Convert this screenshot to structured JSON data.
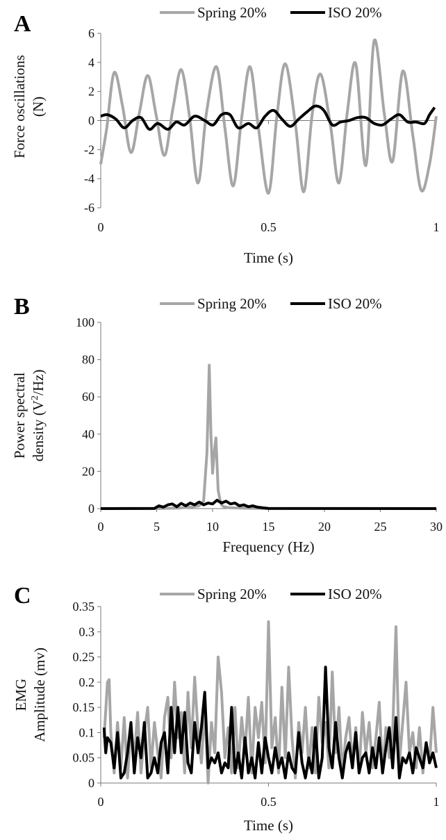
{
  "chart_data": [
    {
      "panel": "A",
      "type": "line",
      "xlabel": "Time (s)",
      "ylabel": "Force oscillations (N)",
      "xlim": [
        0,
        1
      ],
      "ylim": [
        -6,
        6
      ],
      "xticks": [
        "0",
        "0.5",
        "1"
      ],
      "xtick_values": [
        0,
        0.5,
        1
      ],
      "yticks": [
        "-6",
        "-4",
        "-2",
        "0",
        "2",
        "4",
        "6"
      ],
      "ytick_values": [
        -6,
        -4,
        -2,
        0,
        2,
        4,
        6
      ],
      "grid": false,
      "legend_position": "top-center",
      "series": [
        {
          "name": "Spring 20%",
          "color": "#a6a6a6",
          "x": [
            0,
            0.018,
            0.04,
            0.065,
            0.09,
            0.115,
            0.14,
            0.165,
            0.19,
            0.215,
            0.24,
            0.265,
            0.29,
            0.315,
            0.345,
            0.37,
            0.395,
            0.42,
            0.445,
            0.47,
            0.5,
            0.525,
            0.55,
            0.58,
            0.605,
            0.63,
            0.655,
            0.685,
            0.71,
            0.735,
            0.76,
            0.79,
            0.815,
            0.845,
            0.87,
            0.9,
            0.93,
            0.955,
            0.98,
            1.0
          ],
          "y": [
            -3.0,
            -0.5,
            3.3,
            1.0,
            -2.2,
            0.5,
            3.1,
            0.4,
            -2.4,
            0.8,
            3.5,
            0.2,
            -4.3,
            0.5,
            3.7,
            -0.5,
            -4.5,
            0.2,
            3.7,
            -0.5,
            -5.0,
            0.3,
            3.9,
            -0.2,
            -4.9,
            0.4,
            3.2,
            -0.4,
            -4.3,
            0.6,
            3.9,
            -3.1,
            5.5,
            0.5,
            -2.8,
            3.4,
            -1.0,
            -4.8,
            -3.0,
            0.3
          ]
        },
        {
          "name": "ISO 20%",
          "color": "#000000",
          "x": [
            0,
            0.02,
            0.045,
            0.07,
            0.095,
            0.12,
            0.145,
            0.17,
            0.2,
            0.225,
            0.25,
            0.28,
            0.31,
            0.335,
            0.36,
            0.385,
            0.41,
            0.44,
            0.465,
            0.49,
            0.515,
            0.54,
            0.565,
            0.59,
            0.615,
            0.64,
            0.665,
            0.69,
            0.715,
            0.74,
            0.765,
            0.79,
            0.815,
            0.84,
            0.865,
            0.89,
            0.915,
            0.94,
            0.965,
            0.98,
            0.995
          ],
          "y": [
            0.3,
            0.4,
            0.1,
            -0.5,
            0.0,
            0.2,
            -0.6,
            -0.2,
            -0.6,
            -0.1,
            -0.3,
            0.3,
            0.0,
            -0.3,
            0.4,
            0.4,
            -0.5,
            -0.2,
            -0.5,
            0.3,
            0.7,
            0.1,
            -0.4,
            0.1,
            0.6,
            1.0,
            0.7,
            -0.3,
            -0.1,
            0.0,
            0.2,
            0.2,
            -0.2,
            -0.3,
            0.1,
            0.4,
            -0.1,
            -0.1,
            -0.2,
            0.4,
            0.9
          ]
        }
      ]
    },
    {
      "panel": "B",
      "type": "line",
      "xlabel": "Frequency (Hz)",
      "ylabel": "Power spectral density (V²/Hz)",
      "ylabel_line1": "Power spectral",
      "ylabel_line2_pre": "density (V",
      "ylabel_line2_sup": "2",
      "ylabel_line2_post": "/Hz)",
      "xlim": [
        0,
        30
      ],
      "ylim": [
        0,
        100
      ],
      "xticks": [
        "0",
        "5",
        "10",
        "15",
        "20",
        "25",
        "30"
      ],
      "xtick_values": [
        0,
        5,
        10,
        15,
        20,
        25,
        30
      ],
      "yticks": [
        "0",
        "20",
        "40",
        "60",
        "80",
        "100"
      ],
      "ytick_values": [
        0,
        20,
        40,
        60,
        80,
        100
      ],
      "grid": false,
      "legend_position": "top-center",
      "series": [
        {
          "name": "Spring 20%",
          "color": "#a6a6a6",
          "x": [
            0,
            5,
            7,
            8,
            8.8,
            9.2,
            9.5,
            9.7,
            9.85,
            10.0,
            10.15,
            10.3,
            10.5,
            10.65,
            10.8,
            11.0,
            11.5,
            12.5,
            14,
            15,
            30
          ],
          "y": [
            0,
            0,
            0.3,
            0.8,
            1.5,
            4,
            30,
            77,
            40,
            19,
            30,
            38,
            10,
            5,
            2,
            1,
            0.5,
            0.3,
            0.1,
            0,
            0
          ]
        },
        {
          "name": "ISO 20%",
          "color": "#000000",
          "x": [
            0,
            4.8,
            5.2,
            5.6,
            6.0,
            6.4,
            6.8,
            7.2,
            7.6,
            8.0,
            8.4,
            8.8,
            9.2,
            9.6,
            10.0,
            10.4,
            10.8,
            11.2,
            11.6,
            12.0,
            12.4,
            12.8,
            13.2,
            13.6,
            14.0,
            14.5,
            15,
            30
          ],
          "y": [
            0,
            0.1,
            1.5,
            0.8,
            2.0,
            2.5,
            1.0,
            2.8,
            1.5,
            3.0,
            2.0,
            3.5,
            2.0,
            3.0,
            2.5,
            4.5,
            3.0,
            4.0,
            2.5,
            3.0,
            1.5,
            2.0,
            1.0,
            1.5,
            0.8,
            0.4,
            0.1,
            0
          ]
        }
      ]
    },
    {
      "panel": "C",
      "type": "line",
      "xlabel": "Time (s)",
      "ylabel": "EMG Amplitude (mv)",
      "ylabel_line1": "EMG",
      "ylabel_line2": "Amplitude (mv)",
      "xlim": [
        0,
        1
      ],
      "ylim": [
        0,
        0.35
      ],
      "xticks": [
        "0",
        "0.5",
        "1"
      ],
      "xtick_values": [
        0,
        0.5,
        1
      ],
      "yticks": [
        "0",
        "0.05",
        "0.1",
        "0.15",
        "0.2",
        "0.25",
        "0.3",
        "0.35"
      ],
      "ytick_values": [
        0,
        0.05,
        0.1,
        0.15,
        0.2,
        0.25,
        0.3,
        0.35
      ],
      "grid": false,
      "legend_position": "top-center",
      "series": [
        {
          "name": "Spring 20%",
          "color": "#a6a6a6",
          "x": [
            0.01,
            0.02,
            0.025,
            0.03,
            0.04,
            0.05,
            0.06,
            0.07,
            0.08,
            0.09,
            0.1,
            0.11,
            0.12,
            0.13,
            0.14,
            0.15,
            0.16,
            0.17,
            0.18,
            0.19,
            0.2,
            0.21,
            0.22,
            0.23,
            0.24,
            0.25,
            0.26,
            0.27,
            0.28,
            0.29,
            0.3,
            0.31,
            0.32,
            0.33,
            0.34,
            0.35,
            0.36,
            0.37,
            0.38,
            0.39,
            0.4,
            0.41,
            0.42,
            0.43,
            0.44,
            0.45,
            0.46,
            0.47,
            0.48,
            0.49,
            0.5,
            0.51,
            0.52,
            0.53,
            0.54,
            0.55,
            0.56,
            0.57,
            0.58,
            0.59,
            0.6,
            0.61,
            0.62,
            0.63,
            0.64,
            0.65,
            0.66,
            0.67,
            0.68,
            0.69,
            0.7,
            0.71,
            0.72,
            0.73,
            0.74,
            0.75,
            0.76,
            0.77,
            0.78,
            0.79,
            0.8,
            0.81,
            0.82,
            0.83,
            0.84,
            0.85,
            0.86,
            0.87,
            0.88,
            0.89,
            0.9,
            0.91,
            0.92,
            0.93,
            0.94,
            0.95,
            0.96,
            0.97,
            0.98,
            0.99,
            1.0
          ],
          "y": [
            0.09,
            0.2,
            0.205,
            0.1,
            0.02,
            0.12,
            0.03,
            0.13,
            0.01,
            0.11,
            0.05,
            0.14,
            0.02,
            0.1,
            0.15,
            0.03,
            0.12,
            0.06,
            0.01,
            0.13,
            0.17,
            0.05,
            0.2,
            0.09,
            0.14,
            0.02,
            0.18,
            0.07,
            0.21,
            0.1,
            0.04,
            0.15,
            0.0,
            0.12,
            0.06,
            0.25,
            0.18,
            0.05,
            0.11,
            0.02,
            0.15,
            0.03,
            0.13,
            0.06,
            0.17,
            0.02,
            0.15,
            0.09,
            0.16,
            0.04,
            0.32,
            0.07,
            0.13,
            0.02,
            0.19,
            0.05,
            0.23,
            0.09,
            0.01,
            0.12,
            0.06,
            0.15,
            0.03,
            0.11,
            0.02,
            0.17,
            0.08,
            0.12,
            0.03,
            0.22,
            0.06,
            0.15,
            0.02,
            0.09,
            0.13,
            0.04,
            0.11,
            0.02,
            0.14,
            0.06,
            0.12,
            0.03,
            0.09,
            0.16,
            0.02,
            0.11,
            0.05,
            0.1,
            0.31,
            0.04,
            0.12,
            0.2,
            0.06,
            0.1,
            0.03,
            0.11,
            0.02,
            0.08,
            0.04,
            0.15,
            0.06
          ]
        },
        {
          "name": "ISO 20%",
          "color": "#000000",
          "x": [
            0.01,
            0.015,
            0.02,
            0.03,
            0.04,
            0.05,
            0.06,
            0.07,
            0.08,
            0.09,
            0.1,
            0.11,
            0.12,
            0.13,
            0.14,
            0.15,
            0.16,
            0.17,
            0.18,
            0.19,
            0.2,
            0.21,
            0.22,
            0.23,
            0.24,
            0.25,
            0.26,
            0.27,
            0.28,
            0.29,
            0.3,
            0.31,
            0.32,
            0.33,
            0.34,
            0.35,
            0.36,
            0.37,
            0.38,
            0.39,
            0.4,
            0.41,
            0.42,
            0.43,
            0.44,
            0.45,
            0.46,
            0.47,
            0.48,
            0.49,
            0.5,
            0.51,
            0.52,
            0.53,
            0.54,
            0.55,
            0.56,
            0.57,
            0.58,
            0.59,
            0.6,
            0.61,
            0.62,
            0.63,
            0.64,
            0.65,
            0.66,
            0.67,
            0.68,
            0.69,
            0.7,
            0.71,
            0.72,
            0.73,
            0.74,
            0.75,
            0.76,
            0.77,
            0.78,
            0.79,
            0.8,
            0.81,
            0.82,
            0.83,
            0.84,
            0.85,
            0.86,
            0.87,
            0.88,
            0.89,
            0.9,
            0.91,
            0.92,
            0.93,
            0.94,
            0.95,
            0.96,
            0.97,
            0.98,
            0.99,
            1.0
          ],
          "y": [
            0.11,
            0.06,
            0.09,
            0.08,
            0.03,
            0.1,
            0.01,
            0.02,
            0.06,
            0.12,
            0.02,
            0.09,
            0.05,
            0.12,
            0.01,
            0.02,
            0.05,
            0.02,
            0.08,
            0.1,
            0.02,
            0.15,
            0.06,
            0.15,
            0.06,
            0.14,
            0.04,
            0.02,
            0.12,
            0.06,
            0.11,
            0.18,
            0.03,
            0.05,
            0.04,
            0.06,
            0.02,
            0.04,
            0.03,
            0.15,
            0.02,
            0.06,
            0.01,
            0.09,
            0.02,
            0.05,
            0.01,
            0.08,
            0.02,
            0.09,
            0.05,
            0.02,
            0.07,
            0.03,
            0.05,
            0.01,
            0.06,
            0.03,
            0.02,
            0.1,
            0.04,
            0.01,
            0.05,
            0.02,
            0.11,
            0.01,
            0.05,
            0.23,
            0.07,
            0.03,
            0.12,
            0.05,
            0.01,
            0.06,
            0.08,
            0.03,
            0.1,
            0.02,
            0.05,
            0.06,
            0.02,
            0.07,
            0.03,
            0.09,
            0.02,
            0.07,
            0.11,
            0.03,
            0.13,
            0.01,
            0.05,
            0.04,
            0.06,
            0.02,
            0.07,
            0.05,
            0.03,
            0.08,
            0.04,
            0.06,
            0.03
          ]
        }
      ]
    }
  ]
}
